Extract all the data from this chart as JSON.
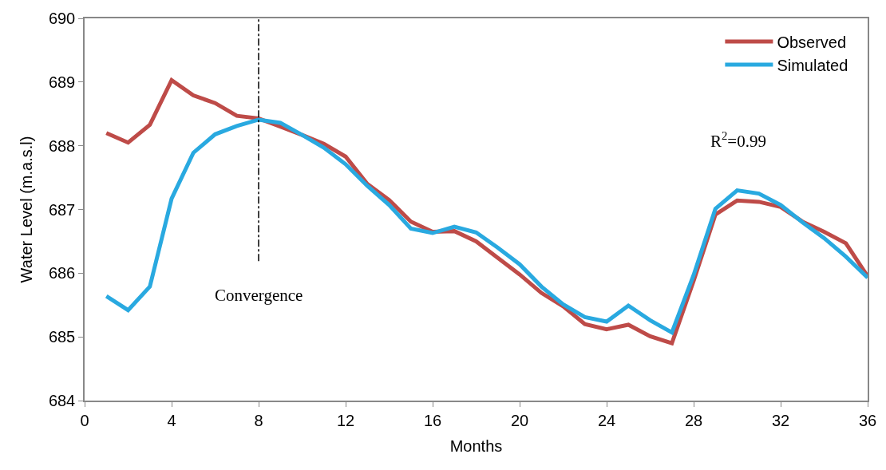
{
  "chart_data": {
    "type": "line",
    "xlabel": "Months",
    "ylabel": "Water Level (m.a.s.l)",
    "x": [
      1,
      2,
      3,
      4,
      5,
      6,
      7,
      8,
      9,
      10,
      11,
      12,
      13,
      14,
      15,
      16,
      17,
      18,
      19,
      20,
      21,
      22,
      23,
      24,
      25,
      26,
      27,
      28,
      29,
      30,
      31,
      32,
      33,
      34,
      35,
      36
    ],
    "series": [
      {
        "name": "Observed",
        "color": "#be4b48",
        "values": [
          688.2,
          688.05,
          688.33,
          689.03,
          688.79,
          688.67,
          688.47,
          688.43,
          688.3,
          688.17,
          688.03,
          687.83,
          687.4,
          687.15,
          686.81,
          686.65,
          686.66,
          686.5,
          686.24,
          685.98,
          685.69,
          685.48,
          685.2,
          685.12,
          685.19,
          685.01,
          684.9,
          685.88,
          686.92,
          687.14,
          687.12,
          687.04,
          686.81,
          686.65,
          686.47,
          685.95
        ]
      },
      {
        "name": "Simulated",
        "color": "#29a9e0",
        "values": [
          685.64,
          685.42,
          685.79,
          687.17,
          687.89,
          688.18,
          688.31,
          688.41,
          688.36,
          688.17,
          687.97,
          687.71,
          687.37,
          687.07,
          686.7,
          686.63,
          686.73,
          686.64,
          686.4,
          686.14,
          685.79,
          685.51,
          685.31,
          685.24,
          685.49,
          685.26,
          685.07,
          685.97,
          687.01,
          687.3,
          687.25,
          687.07,
          686.8,
          686.55,
          686.26,
          685.93
        ]
      }
    ],
    "xlim": [
      0,
      36
    ],
    "xticks": [
      0,
      4,
      8,
      12,
      16,
      20,
      24,
      28,
      32,
      36
    ],
    "ylim": [
      684,
      690
    ],
    "yticks": [
      684,
      685,
      686,
      687,
      688,
      689,
      690
    ],
    "ref_lines": [
      {
        "axis": "x",
        "value": 8,
        "color": "#000000",
        "line_style": "dashdot"
      }
    ],
    "annotations": [
      "Convergence",
      "R$^{2}$=0.99"
    ],
    "legend": "top right",
    "marker": "none",
    "line_style": "solid"
  }
}
